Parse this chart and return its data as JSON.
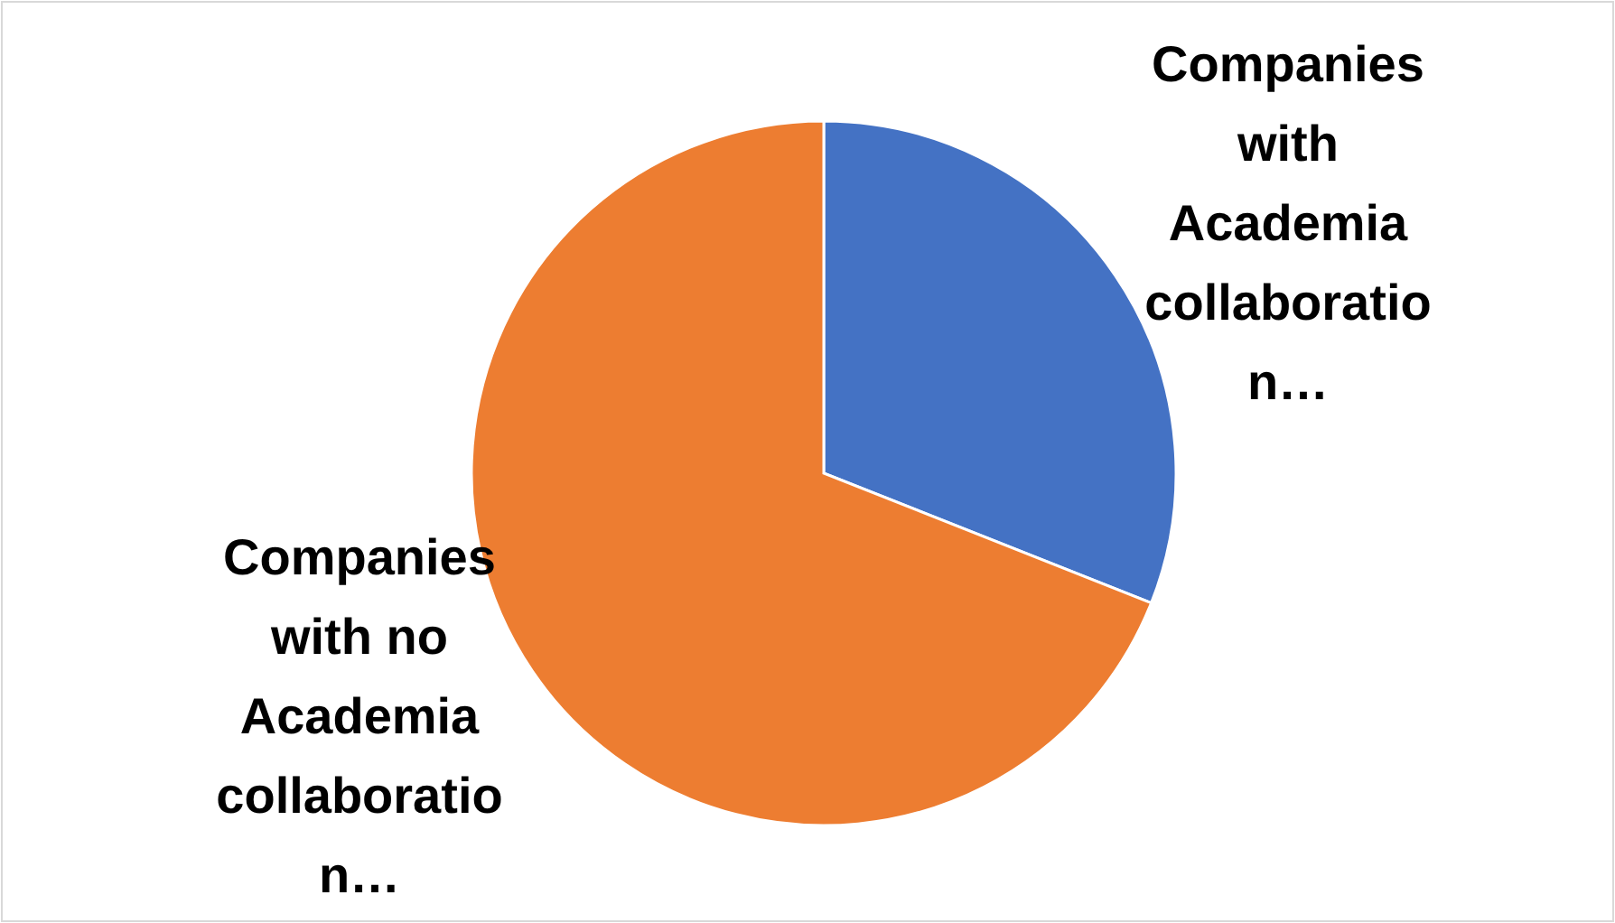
{
  "chart_data": {
    "type": "pie",
    "categories": [
      "Companies with Academia collaboration…",
      "Companies with no Academia collaboration…"
    ],
    "values": [
      31,
      69
    ],
    "colors": [
      "#4472c4",
      "#ed7d31"
    ]
  }
}
